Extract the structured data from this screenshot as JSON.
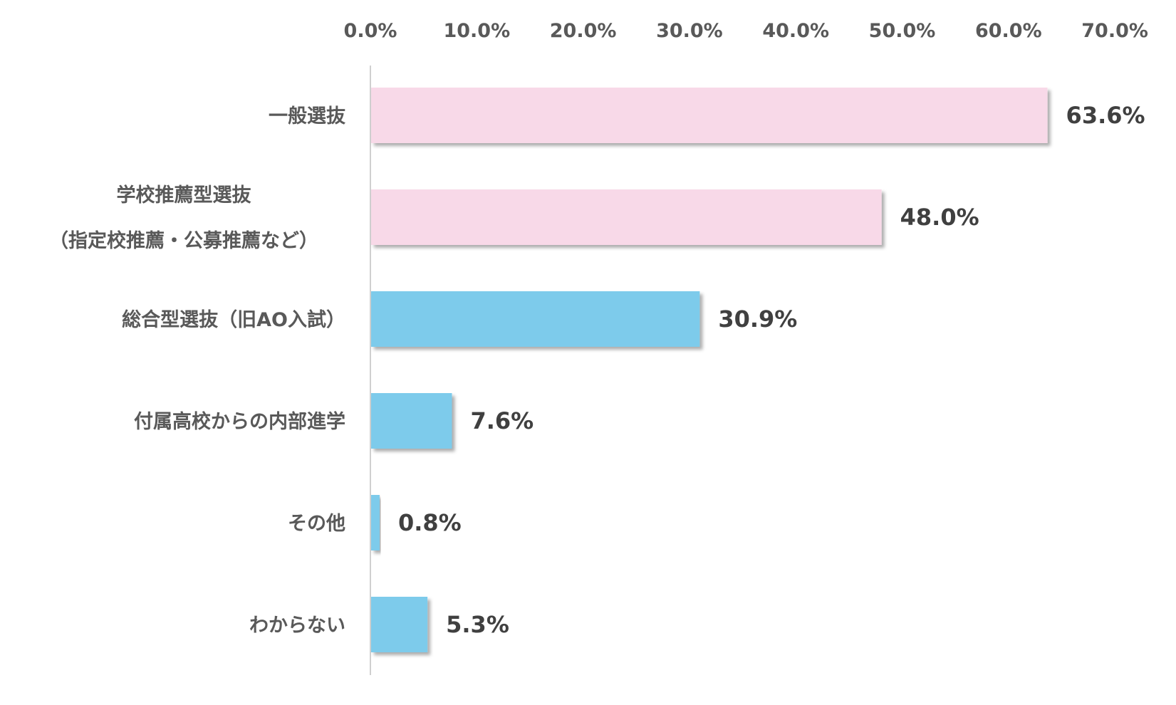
{
  "chart_data": {
    "type": "bar",
    "orientation": "horizontal",
    "x_ticks": [
      "0.0%",
      "10.0%",
      "20.0%",
      "30.0%",
      "40.0%",
      "50.0%",
      "60.0%",
      "70.0%"
    ],
    "xlim": [
      0,
      70
    ],
    "grid": false,
    "categories": [
      [
        "一般選抜"
      ],
      [
        "学校推薦型選抜",
        "（指定校推薦・公募推薦など）"
      ],
      [
        "総合型選抜（旧AO入試）"
      ],
      [
        "付属高校からの内部進学"
      ],
      [
        "その他"
      ],
      [
        "わからない"
      ]
    ],
    "values": [
      63.6,
      48.0,
      30.9,
      7.6,
      0.8,
      5.3
    ],
    "value_labels": [
      "63.6%",
      "48.0%",
      "30.9%",
      "7.6%",
      "0.8%",
      "5.3%"
    ],
    "bar_colors": [
      "#F8D9E8",
      "#F8D9E8",
      "#7DCBEB",
      "#7DCBEB",
      "#7DCBEB",
      "#7DCBEB"
    ]
  }
}
